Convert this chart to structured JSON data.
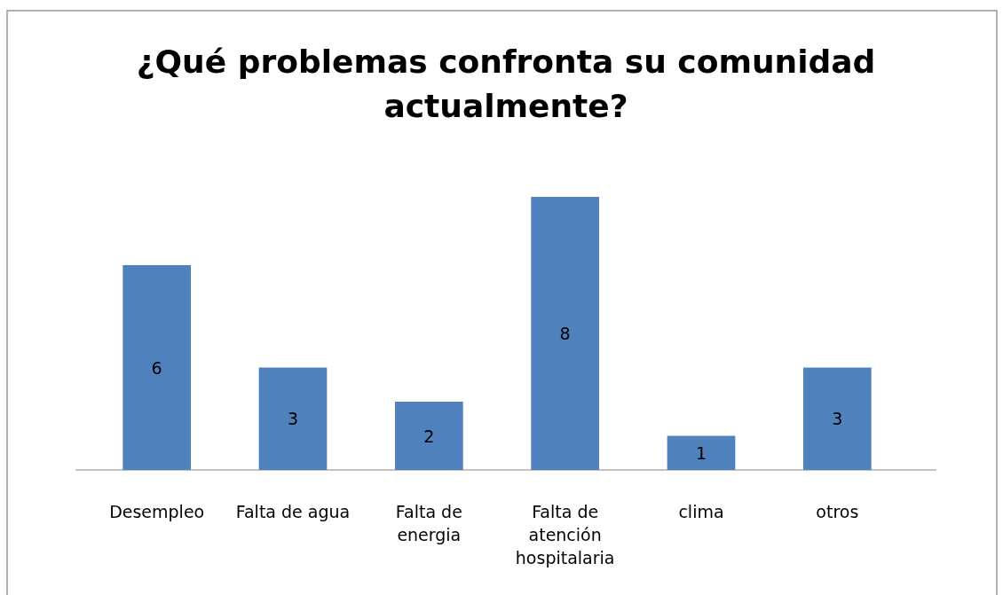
{
  "chart_data": {
    "type": "bar",
    "title": "¿Qué problemas confronta su comunidad actualmente?",
    "categories": [
      "Desempleo",
      "Falta de agua",
      "Falta de energia",
      "Falta de atención hospitalaria",
      "clima",
      "otros"
    ],
    "values": [
      6,
      3,
      2,
      8,
      1,
      3
    ],
    "color": "#4f81bd",
    "data_labels": true
  }
}
